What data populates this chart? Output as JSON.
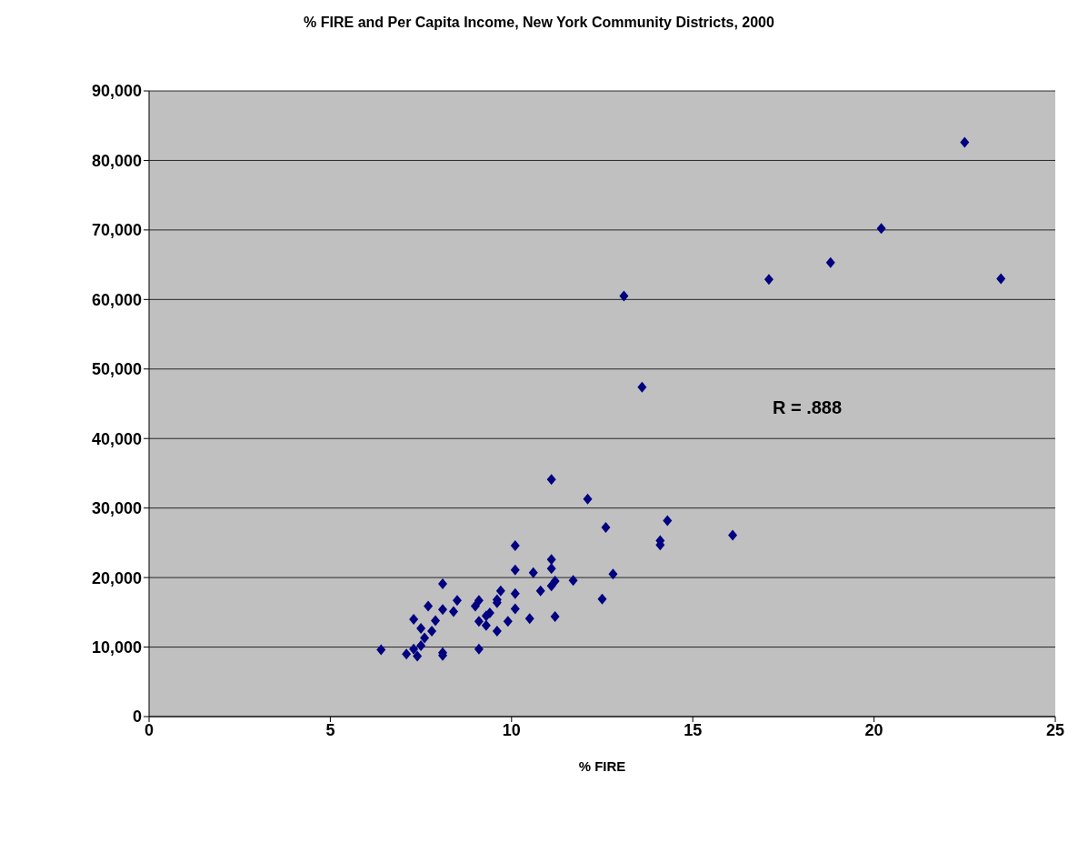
{
  "chart_data": {
    "type": "scatter",
    "title": "% FIRE and Per Capita Income, New York Community Districts, 2000",
    "xlabel": "% FIRE",
    "x": [
      6.4,
      7.1,
      7.3,
      7.4,
      7.5,
      7.6,
      7.8,
      7.5,
      7.3,
      7.9,
      7.7,
      8.1,
      8.1,
      8.1,
      8.1,
      8.4,
      8.5,
      9.0,
      9.1,
      9.1,
      9.1,
      9.3,
      9.3,
      9.4,
      9.6,
      9.6,
      9.6,
      9.7,
      9.9,
      10.1,
      10.1,
      10.1,
      10.1,
      10.5,
      10.6,
      10.8,
      11.1,
      11.1,
      11.1,
      11.2,
      11.2,
      11.7,
      11.1,
      12.1,
      12.6,
      12.8,
      12.5,
      14.3,
      14.1,
      14.1,
      16.1,
      13.1,
      13.6,
      17.1,
      23.5,
      18.8,
      20.2,
      22.5
    ],
    "series": [
      {
        "color": "#000080",
        "values": [
          9600,
          9000,
          9700,
          8700,
          10200,
          11300,
          12300,
          12700,
          14000,
          13800,
          15900,
          19100,
          15400,
          9200,
          8800,
          15100,
          16700,
          15900,
          16700,
          13700,
          9700,
          13100,
          14500,
          14900,
          12300,
          16400,
          16800,
          18100,
          13700,
          24600,
          21100,
          17700,
          15500,
          14100,
          20700,
          18100,
          22600,
          21300,
          18800,
          19500,
          14400,
          19600,
          34100,
          31300,
          27200,
          20500,
          16900,
          28200,
          25300,
          24700,
          26100,
          60500,
          47400,
          62900,
          63000,
          65300,
          70200,
          82600
        ]
      }
    ],
    "xlim": [
      0,
      25
    ],
    "xticks": [
      0,
      5,
      10,
      15,
      20,
      25
    ],
    "ylim": [
      0,
      90000
    ],
    "yticks": [
      0,
      {
        "value": 10000,
        "label": "10,000"
      },
      {
        "value": 20000,
        "label": "20,000"
      },
      {
        "value": 30000,
        "label": "30,000"
      },
      {
        "value": 40000,
        "label": "40,000"
      },
      {
        "value": 50000,
        "label": "50,000"
      },
      {
        "value": 60000,
        "label": "60,000"
      },
      {
        "value": 70000,
        "label": "70,000"
      },
      {
        "value": 80000,
        "label": "80,000"
      },
      {
        "value": 90000,
        "label": "90,000"
      }
    ],
    "grid": "y",
    "marker": "diamond",
    "legend": false,
    "annotations": [
      "R = .888"
    ]
  }
}
